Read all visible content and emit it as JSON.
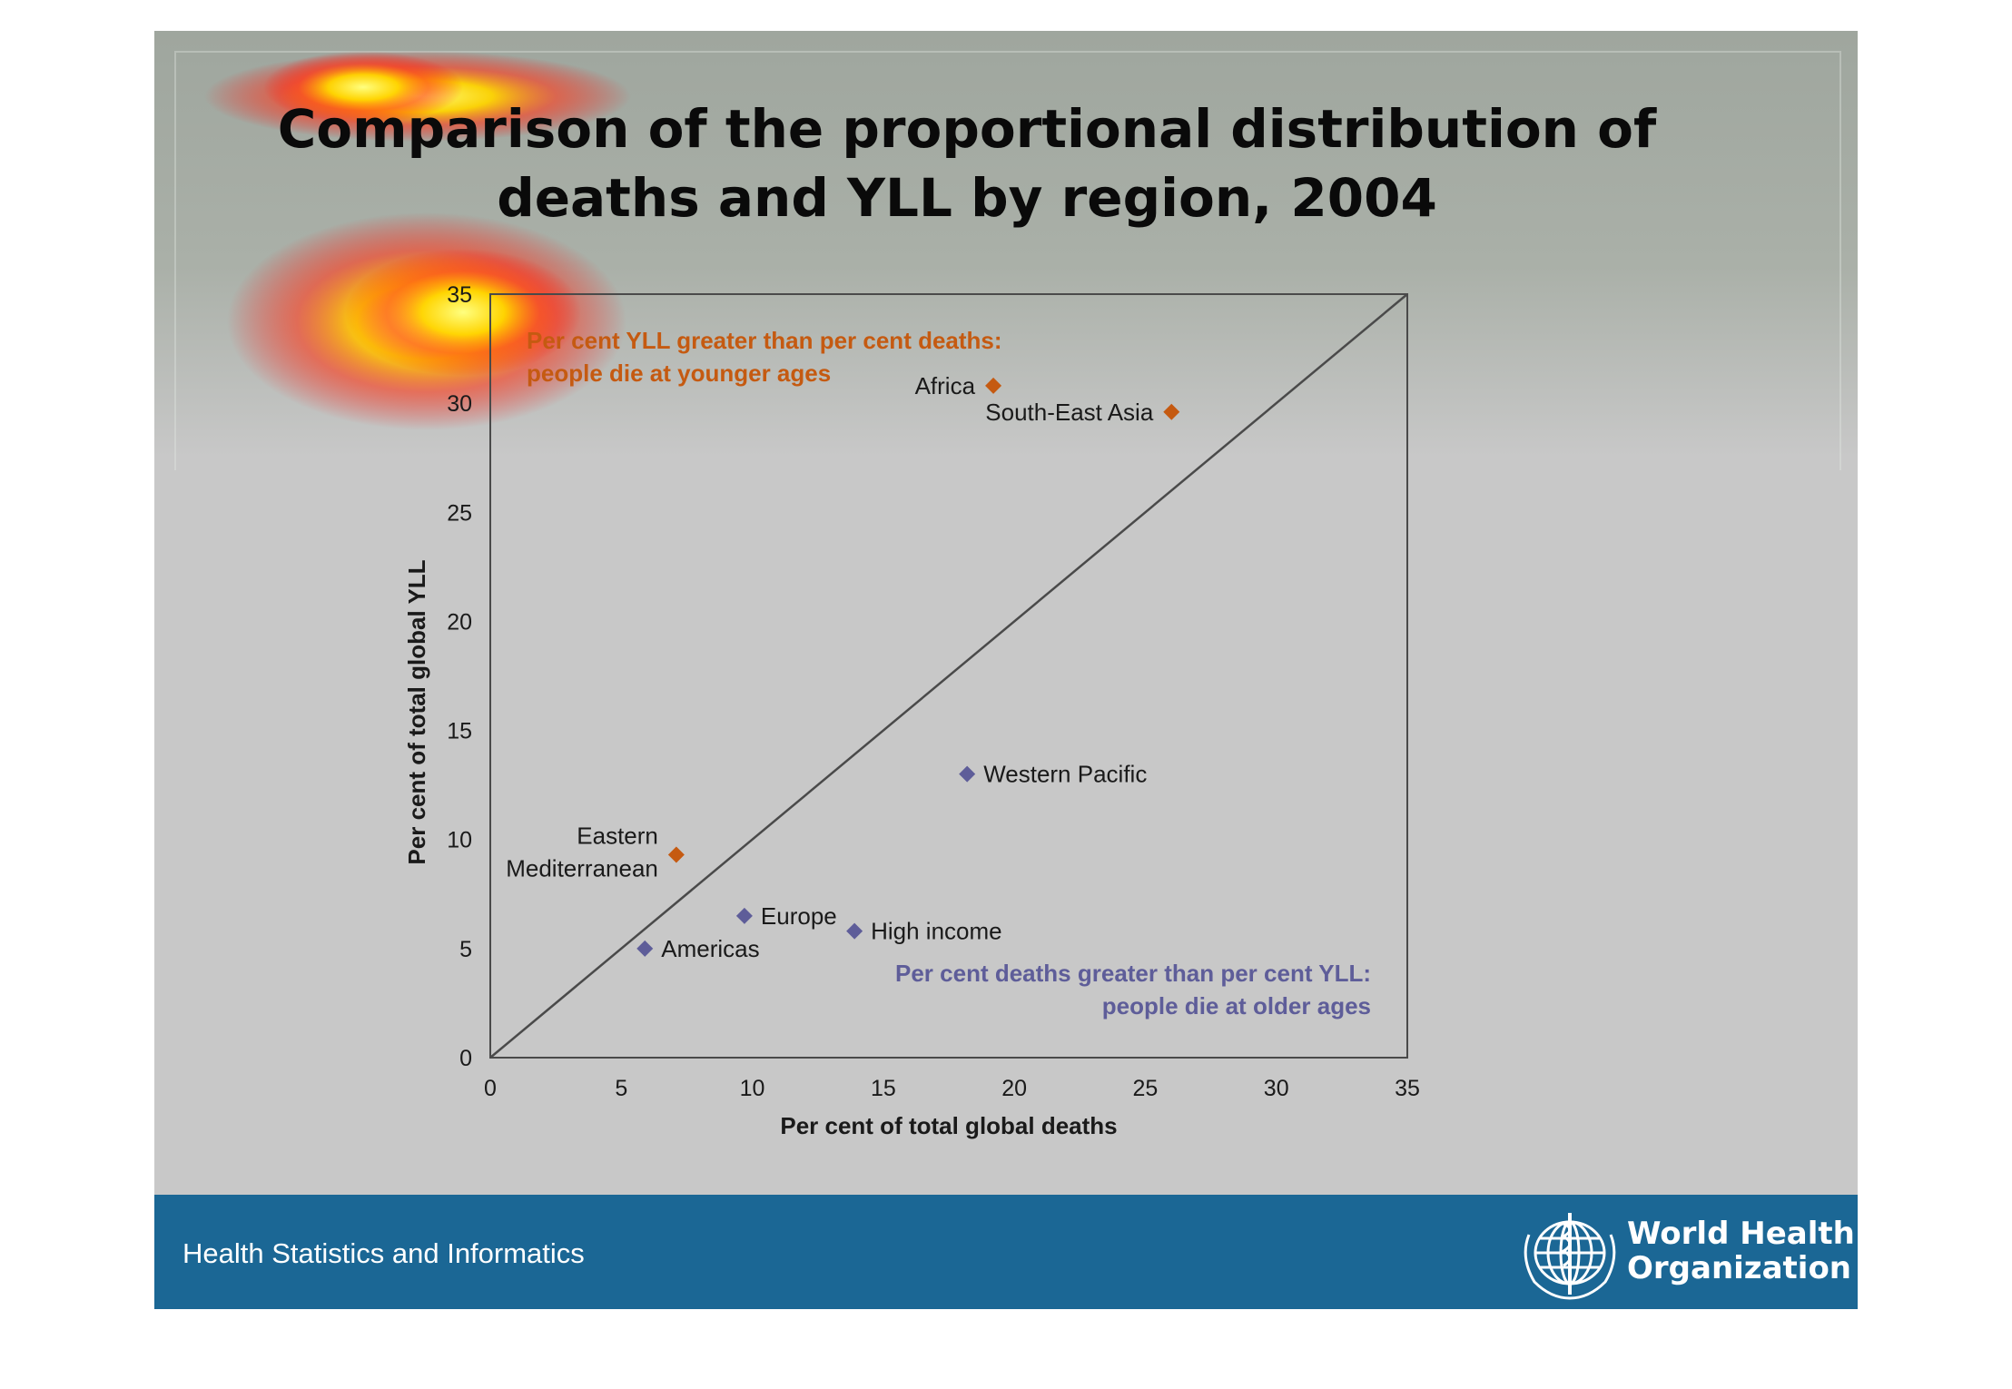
{
  "slide": {
    "title_line1": "Comparison of the proportional distribution of",
    "title_line2": "deaths and YLL by region, 2004",
    "footer_text": "Health Statistics and Informatics",
    "org_name_line1": "World Health",
    "org_name_line2": "Organization",
    "colors": {
      "footer_bar": "#1b6795",
      "yll_greater": "#c55a11",
      "deaths_greater": "#5e5d99",
      "heatmap": "#ffd400"
    }
  },
  "chart_data": {
    "type": "scatter",
    "xlabel": "Per cent of total global deaths",
    "ylabel": "Per cent of total global YLL",
    "xlim": [
      0,
      35
    ],
    "ylim": [
      0,
      35
    ],
    "xticks": [
      "0",
      "5",
      "10",
      "15",
      "20",
      "25",
      "30",
      "35"
    ],
    "yticks": [
      "0",
      "5",
      "10",
      "15",
      "20",
      "25",
      "30",
      "35"
    ],
    "reference_line": "y = x",
    "annotations": {
      "upper_line1": "Per cent YLL greater than per cent deaths:",
      "upper_line2": "people die at younger ages",
      "lower_line1": "Per cent deaths greater than per cent YLL:",
      "lower_line2": "people die at older ages"
    },
    "points": [
      {
        "label": "Africa",
        "x": 19.2,
        "y": 30.8,
        "group": "yll_greater"
      },
      {
        "label": "South-East Asia",
        "x": 26.0,
        "y": 29.6,
        "group": "yll_greater"
      },
      {
        "label": "Western Pacific",
        "x": 18.2,
        "y": 13.0,
        "group": "deaths_greater"
      },
      {
        "label": "Eastern Mediterranean",
        "label_line1": "Eastern",
        "label_line2": "Mediterranean",
        "x": 7.1,
        "y": 9.3,
        "group": "yll_greater"
      },
      {
        "label": "Europe",
        "x": 9.7,
        "y": 6.5,
        "group": "deaths_greater"
      },
      {
        "label": "High income",
        "x": 13.9,
        "y": 5.8,
        "group": "deaths_greater"
      },
      {
        "label": "Americas",
        "x": 5.9,
        "y": 5.0,
        "group": "deaths_greater"
      }
    ]
  }
}
